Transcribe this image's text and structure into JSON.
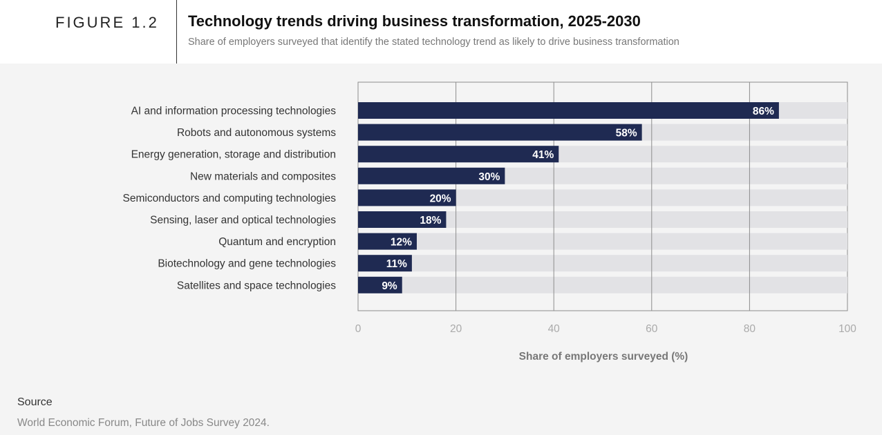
{
  "header": {
    "figure_label": "FIGURE 1.2",
    "title": "Technology trends driving business transformation, 2025-2030",
    "subtitle": "Share of employers surveyed that identify the stated technology trend as likely to drive business transformation"
  },
  "chart_data": {
    "type": "bar",
    "orientation": "horizontal",
    "categories": [
      "AI and information processing technologies",
      "Robots and autonomous systems",
      "Energy generation, storage and distribution",
      "New materials and composites",
      "Semiconductors and computing technologies",
      "Sensing, laser and optical technologies",
      "Quantum and encryption",
      "Biotechnology and gene technologies",
      "Satellites and space technologies"
    ],
    "values": [
      86,
      58,
      41,
      30,
      20,
      18,
      12,
      11,
      9
    ],
    "value_labels": [
      "86%",
      "58%",
      "41%",
      "30%",
      "20%",
      "18%",
      "12%",
      "11%",
      "9%"
    ],
    "xlabel": "Share of employers surveyed (%)",
    "xlim": [
      0,
      100
    ],
    "xticks": [
      "0",
      "20",
      "40",
      "60",
      "80",
      "100"
    ],
    "grid": true,
    "colors": {
      "bar": "#1f2a52",
      "track": "#e2e2e5",
      "grid": "#8c8c8c",
      "tick_label": "#aaaaaa",
      "bar_label": "#ffffff"
    }
  },
  "source": {
    "label": "Source",
    "text": "World Economic Forum, Future of Jobs Survey 2024."
  }
}
